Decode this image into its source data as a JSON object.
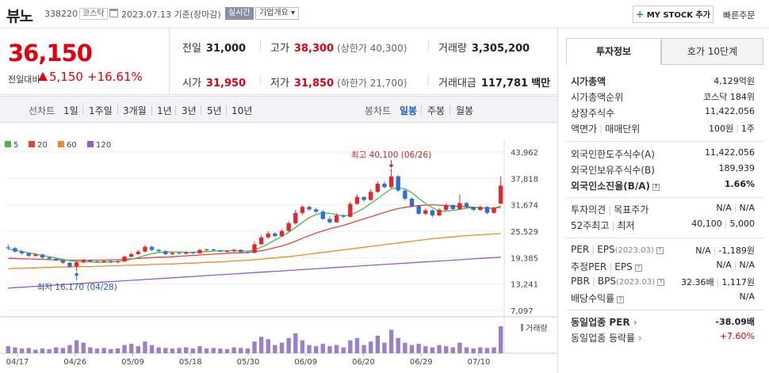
{
  "header": {
    "name": "뷰노",
    "code": "338220",
    "market": "코스닥",
    "date": "2023.07.13",
    "basis": "기준(장마감)",
    "realtime": "실시간",
    "overview": "기업개요",
    "mystock": "MY STOCK 추가",
    "quick_order": "빠른주문"
  },
  "price": {
    "current": "36,150",
    "change_label": "전일대비",
    "change": "5,150",
    "change_pct": "+16.61%",
    "prev_close_label": "전일",
    "prev_close": "31,000",
    "high_label": "고가",
    "high": "38,300",
    "upper_limit": "(상한가 40,300)",
    "volume_label": "거래량",
    "volume": "3,305,200",
    "open_label": "시가",
    "open": "31,950",
    "low_label": "저가",
    "low": "31,850",
    "lower_limit": "(하한가 21,700)",
    "amount_label": "거래대금",
    "amount": "117,781",
    "amount_unit": "백만"
  },
  "chart_toolbar": {
    "line_chart": "선차트",
    "ranges": [
      "1일",
      "1주일",
      "3개월",
      "1년",
      "3년",
      "5년",
      "10년"
    ],
    "candle_chart": "봉차트",
    "periods": [
      "일봉",
      "주봉",
      "월봉"
    ],
    "active_period": "일봉"
  },
  "chart_data": {
    "type": "candlestick",
    "legend": [
      {
        "name": "5",
        "color": "#4cb84c"
      },
      {
        "name": "20",
        "color": "#e8403a"
      },
      {
        "name": "60",
        "color": "#f08c1e"
      },
      {
        "name": "120",
        "color": "#9b59c8"
      }
    ],
    "y_ticks": [
      "43,962",
      "37,818",
      "31,674",
      "25,529",
      "19,385",
      "13,241",
      "7,097"
    ],
    "ylim": [
      7097,
      43962
    ],
    "x_ticks": [
      "04/17",
      "04/26",
      "05/09",
      "05/18",
      "05/30",
      "06/09",
      "06/20",
      "06/29",
      "07/10"
    ],
    "high_annotation": "최고 40,100 (06/26)",
    "low_annotation": "최저 16,170 (04/28)",
    "volume_label": "거래량",
    "up_color": "#e0282e",
    "down_color": "#2f6fd0",
    "candles": [
      [
        21800,
        21600,
        22400,
        21200
      ],
      [
        21600,
        20800,
        21900,
        20500
      ],
      [
        20800,
        20400,
        21200,
        20100
      ],
      [
        20400,
        19800,
        20600,
        19500
      ],
      [
        19800,
        20100,
        20500,
        19600
      ],
      [
        20100,
        19400,
        20300,
        19200
      ],
      [
        19400,
        19100,
        19700,
        18900
      ],
      [
        19100,
        18700,
        19300,
        18600
      ],
      [
        18700,
        18200,
        18900,
        17900
      ],
      [
        18200,
        17300,
        18400,
        17000
      ],
      [
        17300,
        18300,
        18600,
        16170
      ],
      [
        18300,
        18800,
        19100,
        18100
      ],
      [
        18800,
        18500,
        19000,
        18300
      ],
      [
        18500,
        18400,
        18700,
        18200
      ],
      [
        18400,
        18600,
        18800,
        18200
      ],
      [
        18600,
        18300,
        18800,
        18100
      ],
      [
        18300,
        18500,
        18700,
        18100
      ],
      [
        18500,
        19600,
        19900,
        18400
      ],
      [
        19600,
        20200,
        20600,
        19500
      ],
      [
        20200,
        20800,
        21200,
        20000
      ],
      [
        20800,
        21900,
        22300,
        20600
      ],
      [
        21900,
        21200,
        22100,
        20900
      ],
      [
        21200,
        20900,
        21400,
        20600
      ],
      [
        20900,
        20200,
        21100,
        19900
      ],
      [
        20200,
        20500,
        20700,
        20000
      ],
      [
        20500,
        20300,
        20700,
        20100
      ],
      [
        20300,
        20600,
        20900,
        20100
      ],
      [
        20600,
        20400,
        20800,
        20200
      ],
      [
        20400,
        21200,
        21400,
        20300
      ],
      [
        21200,
        21300,
        21500,
        20900
      ],
      [
        21300,
        21100,
        21500,
        20900
      ],
      [
        21100,
        20800,
        21200,
        20600
      ],
      [
        20800,
        20900,
        21100,
        20600
      ],
      [
        20900,
        21200,
        21500,
        20700
      ],
      [
        21200,
        20700,
        21300,
        20500
      ],
      [
        20700,
        20500,
        20900,
        20300
      ],
      [
        20500,
        22500,
        23100,
        20400
      ],
      [
        22500,
        24100,
        24600,
        22300
      ],
      [
        24100,
        25000,
        25500,
        23800
      ],
      [
        25000,
        24400,
        25300,
        24100
      ],
      [
        24400,
        25600,
        26000,
        24200
      ],
      [
        25600,
        27400,
        27900,
        25400
      ],
      [
        27400,
        29800,
        30500,
        27100
      ],
      [
        29800,
        31200,
        31600,
        29300
      ],
      [
        31200,
        30600,
        31500,
        30200
      ],
      [
        30600,
        30100,
        30900,
        29800
      ],
      [
        30100,
        28400,
        30500,
        28200
      ],
      [
        28400,
        27600,
        28900,
        27300
      ],
      [
        27600,
        29200,
        29700,
        27500
      ],
      [
        29200,
        28900,
        29500,
        28600
      ],
      [
        28900,
        31900,
        32400,
        28700
      ],
      [
        31900,
        33500,
        34100,
        31700
      ],
      [
        33500,
        32800,
        33700,
        32400
      ],
      [
        32800,
        34700,
        35300,
        32600
      ],
      [
        34700,
        36600,
        37200,
        34400
      ],
      [
        36600,
        35800,
        37100,
        35500
      ],
      [
        35800,
        38300,
        40100,
        35500
      ],
      [
        38300,
        35000,
        38600,
        34700
      ],
      [
        35000,
        33100,
        35400,
        32700
      ],
      [
        33100,
        31400,
        33400,
        31100
      ],
      [
        31400,
        29600,
        31700,
        29400
      ],
      [
        29600,
        30400,
        30800,
        29300
      ],
      [
        30400,
        29200,
        30600,
        28800
      ],
      [
        29200,
        30500,
        30900,
        29000
      ],
      [
        30500,
        31600,
        32000,
        30300
      ],
      [
        31600,
        30700,
        31800,
        30400
      ],
      [
        30700,
        32100,
        34100,
        30500
      ],
      [
        32100,
        31100,
        32300,
        30800
      ],
      [
        31100,
        30500,
        31300,
        30200
      ],
      [
        30500,
        31200,
        31500,
        30300
      ],
      [
        31200,
        29800,
        31400,
        29500
      ],
      [
        29800,
        31000,
        31300,
        29600
      ],
      [
        31950,
        36150,
        38300,
        31850
      ]
    ],
    "ma5": [
      21400,
      21100,
      20800,
      20500,
      20200,
      19900,
      19600,
      19300,
      19000,
      18700,
      18500,
      18400,
      18400,
      18300,
      18300,
      18400,
      18500,
      18700,
      19000,
      19400,
      19900,
      20300,
      20600,
      20700,
      20700,
      20700,
      20600,
      20600,
      20700,
      20800,
      20900,
      21000,
      21000,
      21000,
      21000,
      20900,
      21200,
      21800,
      22600,
      23500,
      24300,
      25300,
      26400,
      27600,
      28700,
      29400,
      29800,
      29700,
      29400,
      29100,
      29300,
      30000,
      30900,
      32000,
      33100,
      34300,
      35400,
      35700,
      35400,
      34500,
      33200,
      32000,
      31000,
      30200,
      30200,
      30400,
      30600,
      30900,
      31000,
      31000,
      30900,
      30800,
      31500
    ],
    "ma20": [
      19200,
      19200,
      19100,
      19100,
      19000,
      19000,
      18900,
      18900,
      18800,
      18800,
      18800,
      18800,
      18800,
      18800,
      18800,
      18900,
      18900,
      19000,
      19100,
      19200,
      19300,
      19400,
      19500,
      19500,
      19600,
      19700,
      19800,
      19900,
      20000,
      20100,
      20200,
      20300,
      20400,
      20500,
      20500,
      20600,
      20800,
      21000,
      21300,
      21700,
      22100,
      22600,
      23200,
      23900,
      24500,
      25100,
      25600,
      26100,
      26500,
      26900,
      27400,
      27900,
      28400,
      28900,
      29400,
      29900,
      30400,
      30800,
      31100,
      31300,
      31500,
      31600,
      31700,
      31600,
      31500,
      31400,
      31300,
      31200,
      31100,
      31000,
      30900,
      30900,
      31100
    ],
    "ma60": [
      16800,
      16900,
      16900,
      17000,
      17000,
      17100,
      17100,
      17200,
      17200,
      17200,
      17300,
      17300,
      17300,
      17400,
      17400,
      17500,
      17500,
      17600,
      17600,
      17700,
      17700,
      17800,
      17800,
      17900,
      17900,
      18000,
      18100,
      18100,
      18200,
      18300,
      18300,
      18400,
      18500,
      18600,
      18700,
      18800,
      18900,
      19000,
      19200,
      19300,
      19500,
      19600,
      19800,
      20000,
      20200,
      20400,
      20600,
      20800,
      21000,
      21200,
      21400,
      21600,
      21800,
      22000,
      22200,
      22400,
      22600,
      22800,
      23000,
      23200,
      23400,
      23600,
      23800,
      23900,
      24100,
      24200,
      24400,
      24500,
      24600,
      24700,
      24800,
      24900,
      25000
    ],
    "ma120": [
      12300,
      12400,
      12500,
      12600,
      12700,
      12800,
      12900,
      13000,
      13100,
      13200,
      13300,
      13400,
      13500,
      13600,
      13700,
      13800,
      13900,
      14000,
      14100,
      14200,
      14300,
      14400,
      14500,
      14600,
      14700,
      14800,
      14900,
      15000,
      15100,
      15200,
      15300,
      15400,
      15500,
      15600,
      15700,
      15800,
      15900,
      16000,
      16100,
      16200,
      16300,
      16400,
      16500,
      16600,
      16700,
      16800,
      16900,
      17000,
      17100,
      17200,
      17300,
      17400,
      17500,
      17600,
      17700,
      17800,
      17900,
      18000,
      18100,
      18200,
      18300,
      18400,
      18500,
      18600,
      18700,
      18800,
      18900,
      19000,
      19100,
      19200,
      19300,
      19400,
      19500
    ],
    "volumes": [
      12,
      10,
      8,
      9,
      6,
      8,
      7,
      10,
      9,
      14,
      22,
      18,
      10,
      8,
      9,
      7,
      8,
      14,
      16,
      12,
      20,
      14,
      10,
      9,
      8,
      9,
      10,
      8,
      12,
      8,
      9,
      8,
      7,
      10,
      9,
      8,
      20,
      28,
      24,
      14,
      18,
      26,
      34,
      22,
      14,
      12,
      16,
      12,
      14,
      10,
      22,
      26,
      14,
      20,
      30,
      18,
      40,
      26,
      18,
      14,
      16,
      12,
      10,
      14,
      12,
      10,
      18,
      10,
      8,
      10,
      9,
      10,
      46
    ]
  },
  "right_panel": {
    "tab_invest": "투자정보",
    "tab_hoga": "호가 10단계",
    "market_cap_label": "시가총액",
    "market_cap": "4,129억원",
    "market_cap_rank_label": "시가총액순위",
    "market_cap_rank_market": "코스닥",
    "market_cap_rank": "184위",
    "shares_label": "상장주식수",
    "shares": "11,422,056",
    "par_label": "액면가",
    "trade_unit_label": "매매단위",
    "par": "100원",
    "trade_unit": "1주",
    "foreign_limit_label": "외국인한도주식수(A)",
    "foreign_limit": "11,422,056",
    "foreign_hold_label": "외국인보유주식수(B)",
    "foreign_hold": "189,939",
    "foreign_ratio_label": "외국인소진율(B/A)",
    "foreign_ratio": "1.66%",
    "opinion_label": "투자의견",
    "target_label": "목표주가",
    "opinion": "N/A",
    "target": "N/A",
    "w52_high_label": "52주최고",
    "w52_low_label": "최저",
    "w52_high": "40,100",
    "w52_low": "5,000",
    "per_label": "PER",
    "eps_label": "EPS",
    "eps_period": "(2023.03)",
    "per": "N/A",
    "eps": "-1,189원",
    "est_per_label": "추정PER",
    "est_eps_label": "EPS",
    "est_per": "N/A",
    "est_eps": "N/A",
    "pbr_label": "PBR",
    "bps_label": "BPS",
    "bps_period": "(2023.03)",
    "pbr": "32.36배",
    "bps": "1,117원",
    "div_label": "배당수익률",
    "div": "N/A",
    "sector_per_label": "동일업종 PER",
    "sector_per": "-38.09배",
    "sector_chg_label": "동일업종 등락률",
    "sector_chg": "+7.60%"
  }
}
